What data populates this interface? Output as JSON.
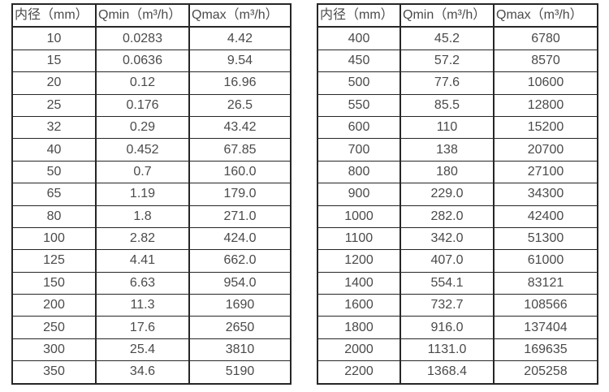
{
  "colors": {
    "text": "#4a4a4a",
    "border": "#262626",
    "background": "#ffffff"
  },
  "tables": [
    {
      "name": "flow-table-small-diameters",
      "headers": [
        "内径（mm）",
        "Qmin（m³/h）",
        "Qmax（m³/h）"
      ],
      "rows": [
        [
          "10",
          "0.0283",
          "4.42"
        ],
        [
          "15",
          "0.0636",
          "9.54"
        ],
        [
          "20",
          "0.12",
          "16.96"
        ],
        [
          "25",
          "0.176",
          "26.5"
        ],
        [
          "32",
          "0.29",
          "43.42"
        ],
        [
          "40",
          "0.452",
          "67.85"
        ],
        [
          "50",
          "0.7",
          "160.0"
        ],
        [
          "65",
          "1.19",
          "179.0"
        ],
        [
          "80",
          "1.8",
          "271.0"
        ],
        [
          "100",
          "2.82",
          "424.0"
        ],
        [
          "125",
          "4.41",
          "662.0"
        ],
        [
          "150",
          "6.63",
          "954.0"
        ],
        [
          "200",
          "11.3",
          "1690"
        ],
        [
          "250",
          "17.6",
          "2650"
        ],
        [
          "300",
          "25.4",
          "3810"
        ],
        [
          "350",
          "34.6",
          "5190"
        ]
      ]
    },
    {
      "name": "flow-table-large-diameters",
      "headers": [
        "内径（mm）",
        "Qmin（m³/h）",
        "Qmax（m³/h）"
      ],
      "rows": [
        [
          "400",
          "45.2",
          "6780"
        ],
        [
          "450",
          "57.2",
          "8570"
        ],
        [
          "500",
          "77.6",
          "10600"
        ],
        [
          "550",
          "85.5",
          "12800"
        ],
        [
          "600",
          "110",
          "15200"
        ],
        [
          "700",
          "138",
          "20700"
        ],
        [
          "800",
          "180",
          "27100"
        ],
        [
          "900",
          "229.0",
          "34300"
        ],
        [
          "1000",
          "282.0",
          "42400"
        ],
        [
          "1100",
          "342.0",
          "51300"
        ],
        [
          "1200",
          "407.0",
          "61000"
        ],
        [
          "1400",
          "554.1",
          "83121"
        ],
        [
          "1600",
          "732.7",
          "108566"
        ],
        [
          "1800",
          "916.0",
          "137404"
        ],
        [
          "2000",
          "1131.0",
          "169635"
        ],
        [
          "2200",
          "1368.4",
          "205258"
        ]
      ]
    }
  ]
}
